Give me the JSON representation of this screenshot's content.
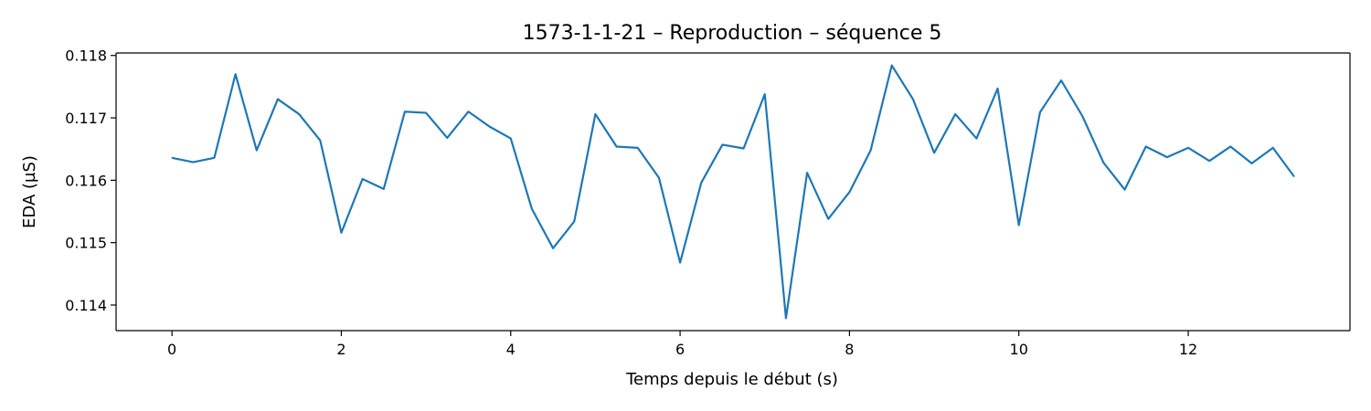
{
  "chart_data": {
    "type": "line",
    "title": "1573-1-1-21 – Reproduction – séquence 5",
    "xlabel": "Temps depuis le début (s)",
    "ylabel": "EDA (µS)",
    "xlim": [
      -0.66,
      13.91
    ],
    "ylim": [
      0.11359,
      0.11804
    ],
    "xticks": [
      0,
      2,
      4,
      6,
      8,
      10,
      12
    ],
    "yticks": [
      0.114,
      0.115,
      0.116,
      0.117,
      0.118
    ],
    "xtick_labels": [
      "0",
      "2",
      "4",
      "6",
      "8",
      "10",
      "12"
    ],
    "ytick_labels": [
      "0.114",
      "0.115",
      "0.116",
      "0.117",
      "0.118"
    ],
    "grid": false,
    "series": [
      {
        "color": "#1f77b4",
        "x": [
          0,
          0.25,
          0.5,
          0.75,
          1.0,
          1.25,
          1.5,
          1.75,
          2.0,
          2.25,
          2.5,
          2.75,
          3.0,
          3.25,
          3.5,
          3.75,
          4.0,
          4.25,
          4.5,
          4.75,
          5.0,
          5.25,
          5.5,
          5.75,
          6.0,
          6.25,
          6.5,
          6.75,
          7.0,
          7.25,
          7.5,
          7.75,
          8.0,
          8.25,
          8.5,
          8.75,
          9.0,
          9.25,
          9.5,
          9.75,
          10.0,
          10.25,
          10.5,
          10.75,
          11.0,
          11.25,
          11.5,
          11.75,
          12.0,
          12.25,
          12.5,
          12.75,
          13.0,
          13.25
        ],
        "y": [
          0.11636,
          0.11629,
          0.11636,
          0.1177,
          0.11648,
          0.1173,
          0.11706,
          0.11664,
          0.11516,
          0.11602,
          0.11586,
          0.1171,
          0.11708,
          0.11668,
          0.1171,
          0.11686,
          0.11667,
          0.11554,
          0.11491,
          0.11534,
          0.11706,
          0.11654,
          0.11652,
          0.11604,
          0.11468,
          0.11596,
          0.11657,
          0.11651,
          0.11738,
          0.11379,
          0.11612,
          0.11538,
          0.11581,
          0.11648,
          0.11784,
          0.1173,
          0.11644,
          0.11706,
          0.11667,
          0.11747,
          0.11528,
          0.11709,
          0.1176,
          0.11703,
          0.11628,
          0.11585,
          0.11654,
          0.11637,
          0.11652,
          0.11631,
          0.11654,
          0.11627,
          0.11652,
          0.11606
        ]
      }
    ]
  }
}
